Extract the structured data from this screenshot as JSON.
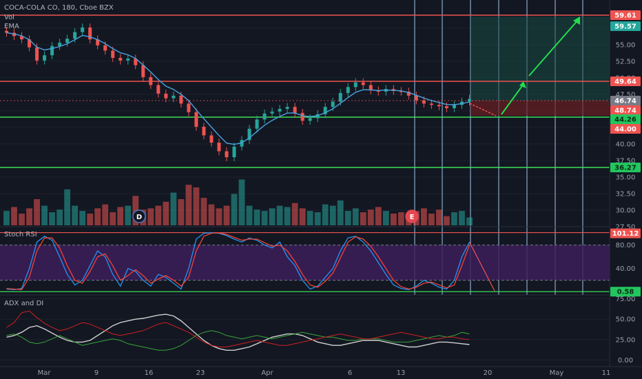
{
  "header": {
    "symbol_line": "COCA-COLA CO, 180, Cboe BZX",
    "vol_label": "Vol",
    "ema_label": "EMA"
  },
  "colors": {
    "background": "#131722",
    "up": "#26a69a",
    "down": "#ef5350",
    "hline_red": "#ef5350",
    "hline_green": "#3ee05a",
    "vline": "#9ec3e6",
    "projection_arrow": "#22e04a",
    "stoch_k": "#2196f3",
    "stoch_d": "#f44336",
    "stoch_band": "#3c1f5a",
    "adx": "#d0d0d0",
    "di_plus": "#3aa53a",
    "di_minus": "#d02020"
  },
  "chart_data": [
    {
      "type": "candlestick",
      "name": "price",
      "y_ticks": [
        "57.50",
        "55.00",
        "52.50",
        "50.00",
        "47.50",
        "45.00",
        "42.50",
        "40.00",
        "37.50",
        "35.00",
        "32.50",
        "30.00",
        "27.50"
      ],
      "ylim": [
        27.5,
        60.5
      ],
      "x_ticks": [
        "Mar",
        "9",
        "16",
        "23",
        "Apr",
        "6",
        "13",
        "20",
        "May",
        "11"
      ],
      "price_levels": [
        {
          "value": 59.61,
          "label": "59.61",
          "kind": "resistance"
        },
        {
          "value": 49.64,
          "label": "49.64",
          "kind": "resistance"
        },
        {
          "value": 44.26,
          "label": "44.26",
          "kind": "support"
        },
        {
          "value": 36.27,
          "label": "36.27",
          "kind": "support"
        }
      ],
      "axis_tags": [
        {
          "label": "59.61",
          "bg": "#ef5350"
        },
        {
          "label": "59.57",
          "bg": "#26a69a"
        },
        {
          "label": "49.64",
          "bg": "#ef5350"
        },
        {
          "label": "46.74",
          "bg": "#787b86"
        },
        {
          "label": "48.74",
          "bg": "#ef5350"
        },
        {
          "label": "44.26",
          "bg": "#22c55e"
        },
        {
          "label": "44.00",
          "bg": "#ef5350"
        },
        {
          "label": "36.27",
          "bg": "#22c55e"
        }
      ],
      "close_series": [
        56.8,
        56.3,
        55.8,
        54.6,
        52.6,
        53.4,
        54.8,
        55.3,
        55.9,
        56.9,
        57.6,
        55.8,
        54.9,
        54.1,
        53.0,
        52.6,
        52.9,
        51.9,
        50.1,
        48.9,
        47.6,
        46.9,
        47.3,
        46.1,
        44.8,
        42.6,
        41.3,
        40.2,
        38.9,
        38.0,
        39.6,
        40.6,
        42.3,
        43.7,
        44.6,
        44.9,
        45.3,
        45.6,
        44.7,
        43.5,
        43.9,
        44.5,
        45.6,
        46.4,
        47.7,
        48.6,
        49.3,
        48.9,
        48.1,
        47.9,
        48.3,
        48.0,
        47.9,
        47.3,
        46.6,
        46.1,
        45.9,
        45.7,
        45.4,
        45.9,
        46.4,
        46.8
      ],
      "markers": [
        {
          "label": "D"
        },
        {
          "label": "E"
        }
      ]
    },
    {
      "type": "line",
      "name": "Stoch RSI",
      "title": "Stoch RSI",
      "y_ticks": [
        "80.00",
        "40.00"
      ],
      "ylim": [
        -5,
        110
      ],
      "band": [
        20,
        80
      ],
      "axis_tags": [
        {
          "label": "101.12",
          "bg": "#ef5350"
        },
        {
          "label": "0.58",
          "bg": "#22c55e"
        }
      ],
      "series": [
        {
          "name": "K",
          "values": [
            5,
            4,
            6,
            40,
            85,
            95,
            88,
            60,
            30,
            12,
            20,
            45,
            70,
            60,
            30,
            10,
            40,
            35,
            20,
            10,
            30,
            25,
            15,
            5,
            40,
            90,
            100,
            101,
            100,
            96,
            90,
            85,
            92,
            88,
            80,
            75,
            85,
            60,
            45,
            20,
            5,
            10,
            25,
            40,
            70,
            92,
            95,
            85,
            70,
            50,
            30,
            12,
            6,
            4,
            10,
            20,
            15,
            8,
            5,
            20,
            60,
            85
          ]
        },
        {
          "name": "D",
          "values": [
            6,
            5,
            4,
            25,
            70,
            92,
            92,
            75,
            45,
            20,
            15,
            35,
            60,
            65,
            45,
            20,
            28,
            38,
            28,
            15,
            22,
            28,
            20,
            10,
            25,
            70,
            95,
            100,
            101,
            98,
            93,
            88,
            90,
            90,
            84,
            78,
            80,
            70,
            52,
            30,
            12,
            8,
            18,
            32,
            58,
            85,
            94,
            90,
            78,
            60,
            40,
            20,
            9,
            5,
            8,
            15,
            17,
            12,
            7,
            12,
            45,
            80
          ]
        }
      ],
      "level_lines": [
        {
          "value": 101.12,
          "label": "101.12"
        },
        {
          "value": 0.58,
          "label": "0.58"
        }
      ]
    },
    {
      "type": "line",
      "name": "ADX and DI",
      "title": "ADX and DI",
      "y_ticks": [
        "75.00",
        "50.00",
        "25.00",
        "0.00"
      ],
      "ylim": [
        -8,
        78
      ],
      "series": [
        {
          "name": "ADX",
          "values": [
            28,
            30,
            34,
            40,
            42,
            38,
            33,
            28,
            24,
            22,
            22,
            24,
            30,
            36,
            42,
            46,
            48,
            50,
            51,
            53,
            55,
            56,
            54,
            48,
            40,
            32,
            24,
            18,
            14,
            12,
            12,
            14,
            16,
            20,
            24,
            28,
            30,
            32,
            32,
            30,
            26,
            22,
            20,
            18,
            18,
            20,
            22,
            24,
            24,
            24,
            22,
            20,
            18,
            16,
            16,
            18,
            20,
            22,
            22,
            21,
            20,
            19
          ]
        },
        {
          "name": "+DI",
          "values": [
            30,
            32,
            28,
            22,
            20,
            22,
            26,
            30,
            26,
            22,
            18,
            20,
            22,
            24,
            26,
            24,
            20,
            18,
            16,
            14,
            12,
            12,
            14,
            18,
            24,
            30,
            34,
            36,
            34,
            30,
            28,
            26,
            28,
            30,
            28,
            26,
            28,
            30,
            32,
            34,
            32,
            30,
            28,
            28,
            26,
            24,
            24,
            26,
            26,
            26,
            24,
            22,
            22,
            22,
            24,
            26,
            28,
            30,
            28,
            30,
            34,
            32
          ]
        },
        {
          "name": "-DI",
          "values": [
            40,
            46,
            58,
            60,
            52,
            45,
            40,
            36,
            38,
            42,
            46,
            44,
            40,
            36,
            32,
            30,
            32,
            34,
            36,
            40,
            44,
            46,
            42,
            38,
            34,
            28,
            22,
            18,
            16,
            16,
            18,
            20,
            22,
            24,
            22,
            20,
            18,
            18,
            20,
            22,
            24,
            26,
            28,
            30,
            32,
            30,
            28,
            26,
            26,
            28,
            30,
            32,
            34,
            32,
            30,
            28,
            26,
            26,
            28,
            28,
            26,
            25
          ]
        }
      ]
    }
  ]
}
